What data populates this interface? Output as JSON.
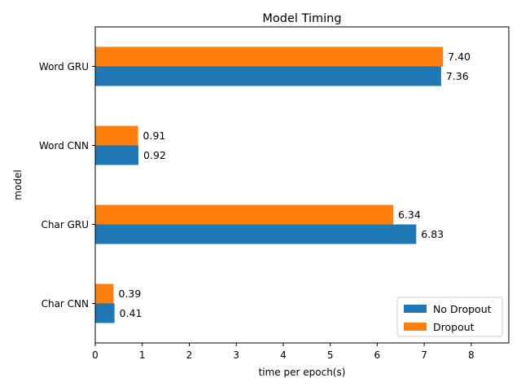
{
  "chart_data": {
    "type": "bar",
    "orientation": "horizontal",
    "title": "Model Timing",
    "xlabel": "time per epoch(s)",
    "ylabel": "model",
    "categories": [
      "Char CNN",
      "Char GRU",
      "Word CNN",
      "Word GRU"
    ],
    "series": [
      {
        "name": "No Dropout",
        "values": [
          0.41,
          6.83,
          0.92,
          7.36
        ],
        "labels": [
          "0.41",
          "6.83",
          "0.92",
          "7.36"
        ],
        "color": "#1f77b4"
      },
      {
        "name": "Dropout",
        "values": [
          0.39,
          6.34,
          0.91,
          7.4
        ],
        "labels": [
          "0.39",
          "6.34",
          "0.91",
          "7.40"
        ],
        "color": "#ff7f0e"
      }
    ],
    "xlim": [
      0,
      8.8
    ],
    "xticks": [
      0,
      1,
      2,
      3,
      4,
      5,
      6,
      7,
      8
    ],
    "grid": false,
    "legend_position": "bottom-right"
  }
}
